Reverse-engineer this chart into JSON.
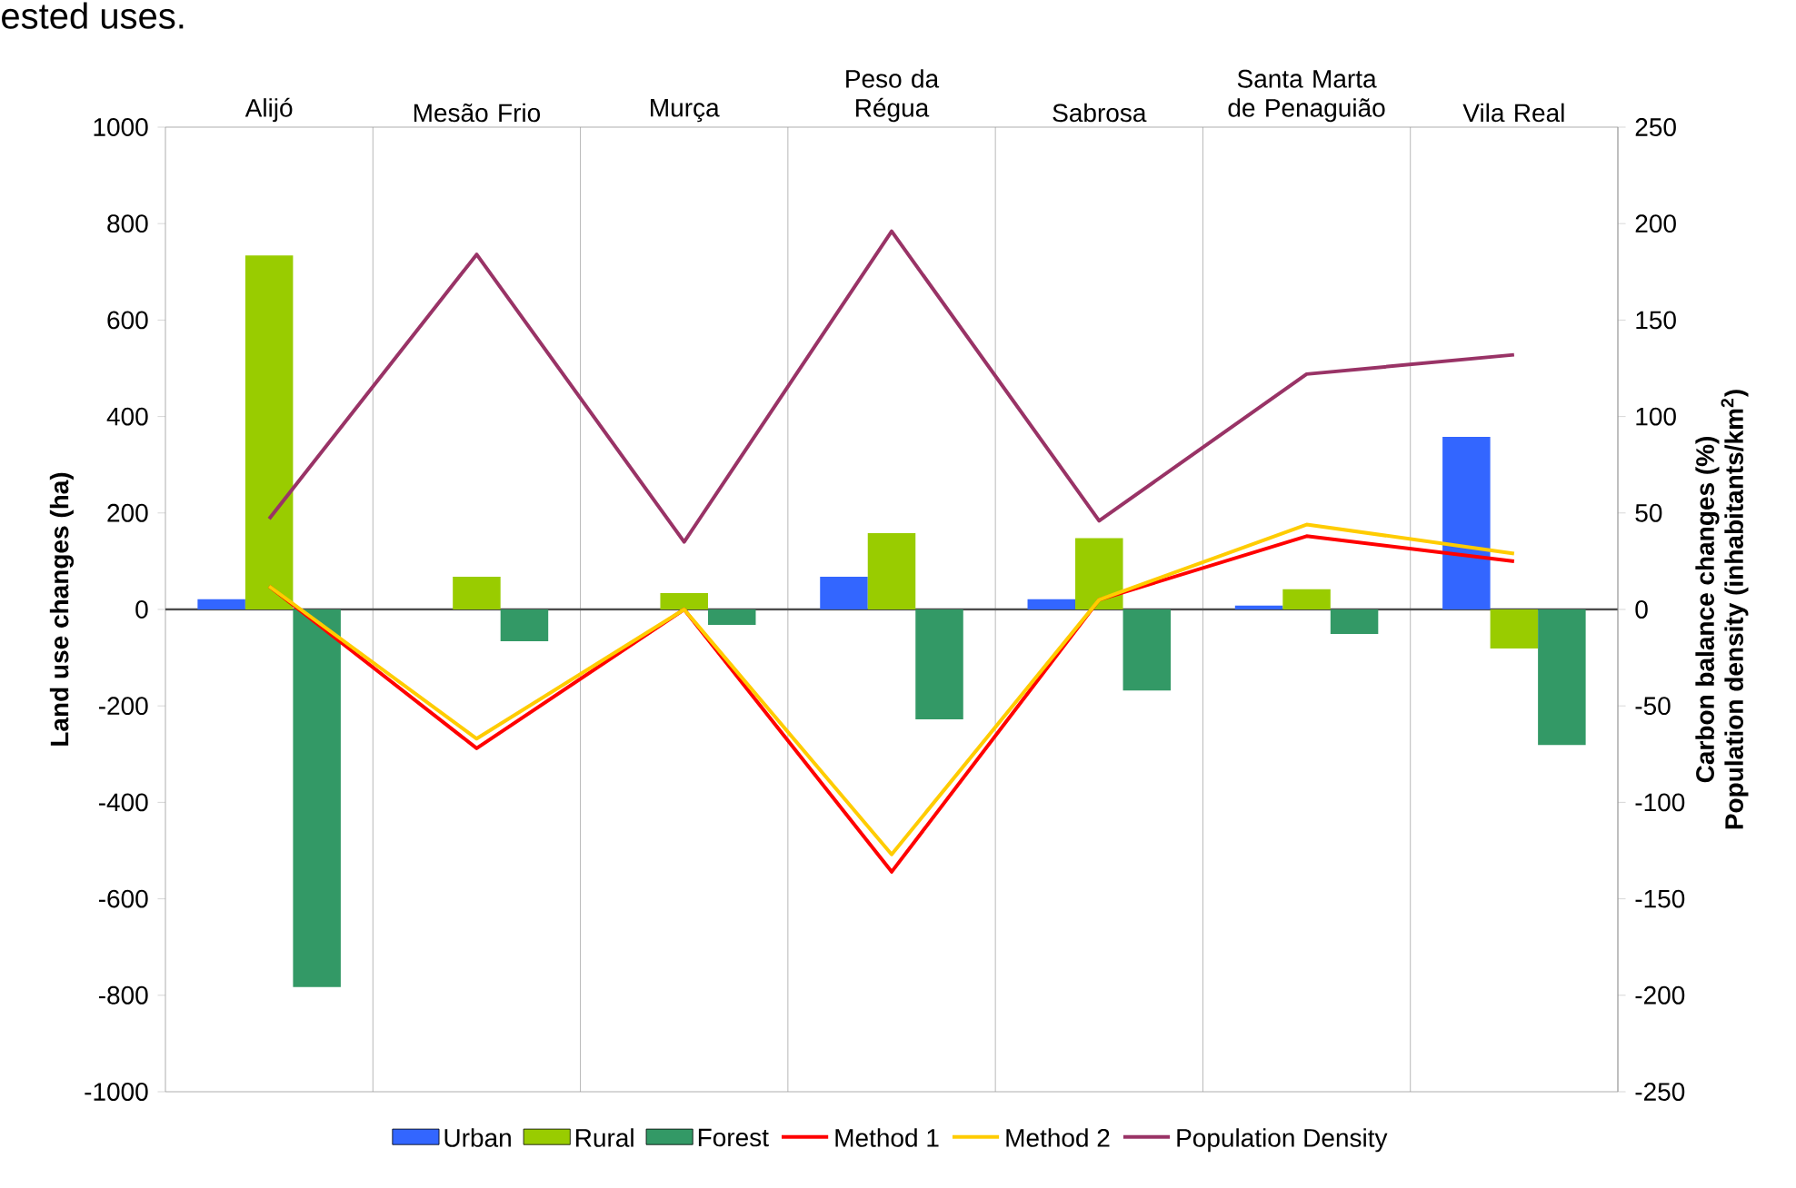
{
  "chart_data": {
    "type": "bar",
    "categories": [
      "Alijó",
      "Mesão Frio",
      "Murça",
      "Peso da Régua",
      "Sabrosa",
      "Santa Marta de Penaguião",
      "Vila Real"
    ],
    "series": [
      {
        "name": "Urban",
        "color": "#3366ff",
        "values": [
          21,
          0,
          0,
          68,
          21,
          8,
          358
        ]
      },
      {
        "name": "Rural",
        "color": "#99cc00",
        "values": [
          734,
          68,
          34,
          158,
          148,
          42,
          -81
        ]
      },
      {
        "name": "Forest",
        "color": "#339966",
        "values": [
          -783,
          -66,
          -32,
          -228,
          -168,
          -51,
          -281
        ]
      },
      {
        "name": "Method 1",
        "type": "line",
        "axis": "y2",
        "color": "#ff0000",
        "values": [
          12,
          -72,
          0,
          -136,
          5,
          38,
          25
        ]
      },
      {
        "name": "Method 2",
        "type": "line",
        "axis": "y2",
        "color": "#ffcc00",
        "values": [
          12,
          -67,
          0,
          -127,
          5,
          44,
          29
        ]
      },
      {
        "name": "Population Density",
        "type": "line",
        "axis": "y2",
        "color": "#993366",
        "values": [
          47,
          184,
          35,
          196,
          46,
          122,
          132
        ]
      }
    ],
    "ylabel": "Land use changes (ha)",
    "y2label": [
      "Carbon balance changes (%)",
      "Population density (inhabitants/km$^{2}$)"
    ],
    "ylim": [
      -1000,
      1000
    ],
    "yticks": [
      -1000,
      -800,
      -600,
      -400,
      -200,
      0,
      200,
      400,
      600,
      800,
      1000
    ],
    "y2lim": [
      -250,
      250
    ],
    "y2ticks": [
      -250,
      -200,
      -150,
      -100,
      -50,
      0,
      50,
      100,
      150,
      200,
      250
    ],
    "grid": "x",
    "legend": "bottom",
    "marker": "none",
    "line_style": "solid",
    "annotations": [
      "ested uses."
    ]
  }
}
